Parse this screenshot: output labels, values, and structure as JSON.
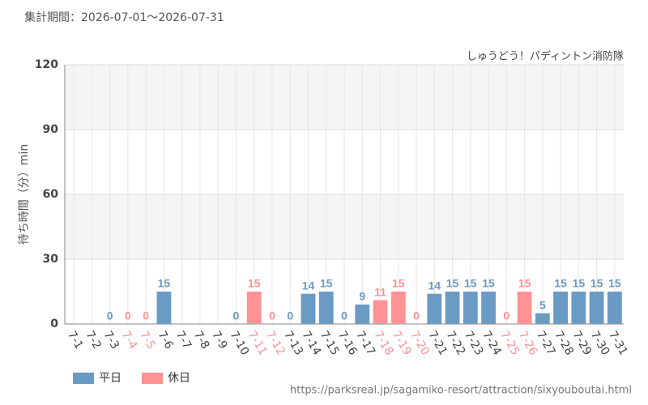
{
  "chart_data": {
    "type": "bar",
    "title": "集計期間：2026-07-01～2026-07-31",
    "subtitle": "しゅうどう！パディントン消防隊",
    "y_label": "待ち時間（分）min",
    "source": "https://parksreal.jp/sagamiko-resort/attraction/sixyouboutai.html",
    "categories": [
      "7-1",
      "7-2",
      "7-3",
      "7-4",
      "7-5",
      "7-6",
      "7-7",
      "7-8",
      "7-9",
      "7-10",
      "7-11",
      "7-12",
      "7-13",
      "7-14",
      "7-15",
      "7-16",
      "7-17",
      "7-18",
      "7-19",
      "7-20",
      "7-21",
      "7-22",
      "7-23",
      "7-24",
      "7-25",
      "7-26",
      "7-27",
      "7-28",
      "7-29",
      "7-30",
      "7-31"
    ],
    "series": [
      {
        "name": "平日",
        "color": "#6a9bc3",
        "values": [
          null,
          null,
          0,
          null,
          null,
          15,
          null,
          null,
          null,
          0,
          null,
          null,
          0,
          14,
          15,
          0,
          9,
          null,
          null,
          null,
          14,
          15,
          15,
          15,
          null,
          null,
          5,
          15,
          15,
          15,
          15
        ]
      },
      {
        "name": "休日",
        "color": "#ff9294",
        "values": [
          null,
          null,
          null,
          0,
          0,
          null,
          null,
          null,
          null,
          null,
          15,
          0,
          null,
          null,
          null,
          null,
          null,
          11,
          15,
          0,
          null,
          null,
          null,
          null,
          0,
          15,
          null,
          null,
          null,
          null,
          null
        ]
      }
    ],
    "ylim": [
      0,
      120
    ],
    "yticks": [
      0,
      30,
      60,
      90,
      120
    ],
    "grid": true
  }
}
